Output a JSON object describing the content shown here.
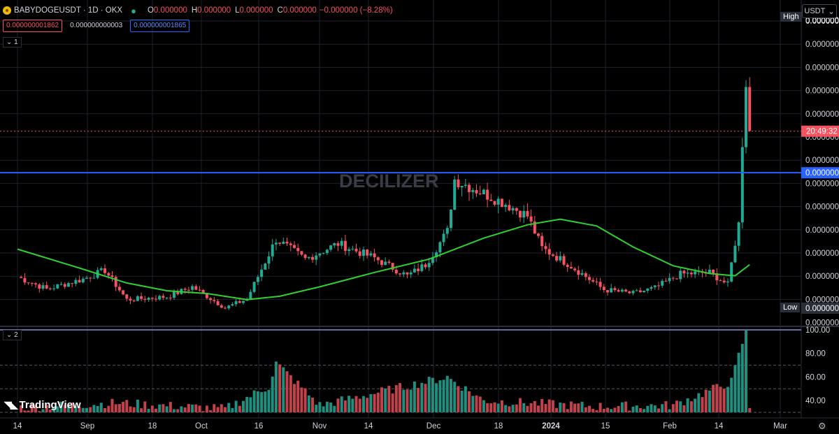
{
  "header": {
    "symbol": "BABYDOGEUSDT · 1D · OKX",
    "o_label": "O",
    "o_value": "0.000000",
    "h_label": "H",
    "h_value": "0.000000",
    "l_label": "L",
    "l_value": "0.000000",
    "c_label": "C",
    "c_value": "0.000000",
    "change": "−0.000000 (−8.28%)"
  },
  "indicator_boxes": [
    "0.000000001862",
    "0.000000000003",
    "0.000000001865"
  ],
  "pane1_tag": "1",
  "pane2_tag": "2",
  "currency": "USDT",
  "watermark": "DECILIZER",
  "brand": "TradingView",
  "high_label": "High",
  "low_label": "Low",
  "countdown": "20:49:32",
  "colors": {
    "up": "#22ab94",
    "down": "#f7525f",
    "ma": "#2ed12e",
    "hline": "#2962ff",
    "rsi_line": "#8c8fd8",
    "bg": "#000000"
  },
  "chart_data": [
    {
      "type": "candlestick",
      "title": "BABYDOGEUSDT · 1D · OKX",
      "x_ticks": [
        "14",
        "Sep",
        "18",
        "Oct",
        "16",
        "Nov",
        "14",
        "Dec",
        "18",
        "2024",
        "15",
        "Feb",
        "14",
        "Mar"
      ],
      "y_tick_labels": [
        "0.000000",
        "0.000000",
        "0.000000",
        "0.000000",
        "0.000000",
        "0.000000",
        "0.000000",
        "0.000000",
        "0.000000",
        "0.000000",
        "0.000000",
        "0.000000",
        "0.000000",
        "0.000000"
      ],
      "right_labels": {
        "high": "0.000000",
        "blue_line": "0.000000",
        "low": "0.000000"
      },
      "ylim": [
        1e-09,
        6.4e-09
      ],
      "horizontal_line": 3.66e-09,
      "last_close": 4.41e-09,
      "anchors": [
        {
          "x": "Aug 14",
          "y": 1.78e-09
        },
        {
          "x": "Aug 22",
          "y": 1.56e-09
        },
        {
          "x": "Sep 1",
          "y": 1.74e-09
        },
        {
          "x": "Sep 7",
          "y": 1.9e-09
        },
        {
          "x": "Sep 13",
          "y": 1.37e-09
        },
        {
          "x": "Sep 24",
          "y": 1.42e-09
        },
        {
          "x": "Oct 1",
          "y": 1.6e-09
        },
        {
          "x": "Oct 10",
          "y": 1.22e-09
        },
        {
          "x": "Oct 16",
          "y": 1.38e-09
        },
        {
          "x": "Oct 24",
          "y": 2.46e-09
        },
        {
          "x": "Nov 1",
          "y": 2.1e-09
        },
        {
          "x": "Nov 10",
          "y": 2.38e-09
        },
        {
          "x": "Nov 20",
          "y": 2.12e-09
        },
        {
          "x": "Nov 29",
          "y": 1.8e-09
        },
        {
          "x": "Dec 4",
          "y": 2e-09
        },
        {
          "x": "Dec 10",
          "y": 2.6e-09
        },
        {
          "x": "Dec 12",
          "y": 3.54e-09
        },
        {
          "x": "Dec 18",
          "y": 3.35e-09
        },
        {
          "x": "Dec 26",
          "y": 3.1e-09
        },
        {
          "x": "Jan 1",
          "y": 2.88e-09
        },
        {
          "x": "Jan 5",
          "y": 2.3e-09
        },
        {
          "x": "Jan 12",
          "y": 2.02e-09
        },
        {
          "x": "Jan 22",
          "y": 1.55e-09
        },
        {
          "x": "Jan 30",
          "y": 1.48e-09
        },
        {
          "x": "Feb 5",
          "y": 1.58e-09
        },
        {
          "x": "Feb 12",
          "y": 1.83e-09
        },
        {
          "x": "Feb 20",
          "y": 1.86e-09
        },
        {
          "x": "Feb 25",
          "y": 1.64e-09
        },
        {
          "x": "Feb 27",
          "y": 2.4e-09
        },
        {
          "x": "Feb 28",
          "y": 2.73e-09
        },
        {
          "x": "Feb 29",
          "y": 4.22e-09
        },
        {
          "x": "Mar 1",
          "y": 5.32e-09
        },
        {
          "x": "Mar 2",
          "y": 4.41e-09
        }
      ],
      "moving_average": [
        {
          "x": "Aug 14",
          "y": 2.28e-09
        },
        {
          "x": "Aug 30",
          "y": 1.96e-09
        },
        {
          "x": "Sep 13",
          "y": 1.67e-09
        },
        {
          "x": "Sep 24",
          "y": 1.53e-09
        },
        {
          "x": "Oct 5",
          "y": 1.48e-09
        },
        {
          "x": "Oct 16",
          "y": 1.37e-09
        },
        {
          "x": "Oct 25",
          "y": 1.43e-09
        },
        {
          "x": "Nov 5",
          "y": 1.6e-09
        },
        {
          "x": "Nov 20",
          "y": 1.86e-09
        },
        {
          "x": "Dec 5",
          "y": 2.1e-09
        },
        {
          "x": "Dec 20",
          "y": 2.48e-09
        },
        {
          "x": "Jan 1",
          "y": 2.72e-09
        },
        {
          "x": "Jan 10",
          "y": 2.82e-09
        },
        {
          "x": "Jan 20",
          "y": 2.7e-09
        },
        {
          "x": "Jan 30",
          "y": 2.32e-09
        },
        {
          "x": "Feb 10",
          "y": 1.98e-09
        },
        {
          "x": "Feb 20",
          "y": 1.84e-09
        },
        {
          "x": "Feb 27",
          "y": 1.8e-09
        },
        {
          "x": "Mar 2",
          "y": 2e-09
        }
      ]
    },
    {
      "type": "bar",
      "title": "",
      "y_ticks": [
        100,
        80,
        60,
        40
      ],
      "ylim": [
        30,
        100
      ],
      "reference_lines": [
        70,
        50,
        30
      ],
      "top_line": 100,
      "anchors": [
        {
          "x": "Aug 14",
          "y": 34
        },
        {
          "x": "Sep 10",
          "y": 38
        },
        {
          "x": "Oct 10",
          "y": 33
        },
        {
          "x": "Oct 22",
          "y": 52
        },
        {
          "x": "Oct 24",
          "y": 72
        },
        {
          "x": "Nov 5",
          "y": 36
        },
        {
          "x": "Dec 10",
          "y": 60
        },
        {
          "x": "Dec 20",
          "y": 40
        },
        {
          "x": "Jan 20",
          "y": 35
        },
        {
          "x": "Feb 10",
          "y": 36
        },
        {
          "x": "Feb 26",
          "y": 56
        },
        {
          "x": "Mar 1",
          "y": 100
        },
        {
          "x": "Mar 2",
          "y": 34
        }
      ]
    }
  ]
}
